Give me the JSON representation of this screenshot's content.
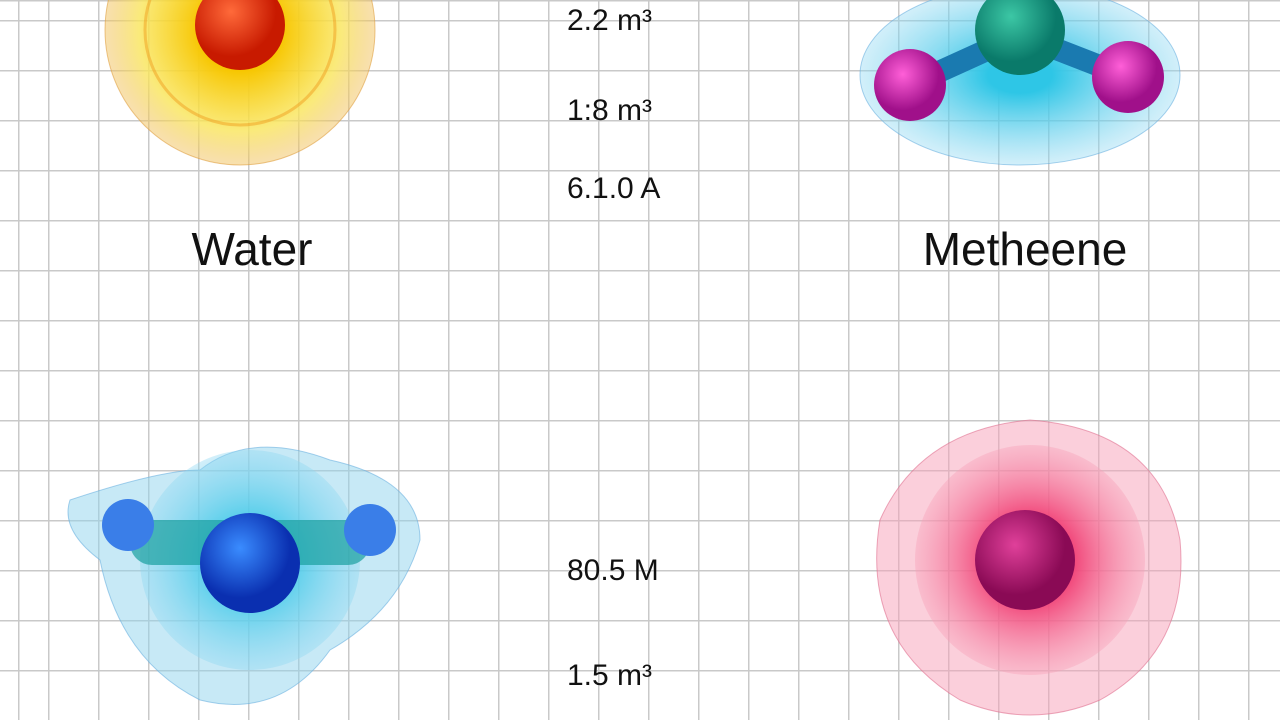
{
  "molecules": [
    {
      "label": "Water"
    },
    {
      "label": "Metheene"
    }
  ],
  "measurements": [
    "2.2 m³",
    "1:8 m³",
    "6.1.0 A",
    "80.5 M",
    "1.5 m³"
  ]
}
